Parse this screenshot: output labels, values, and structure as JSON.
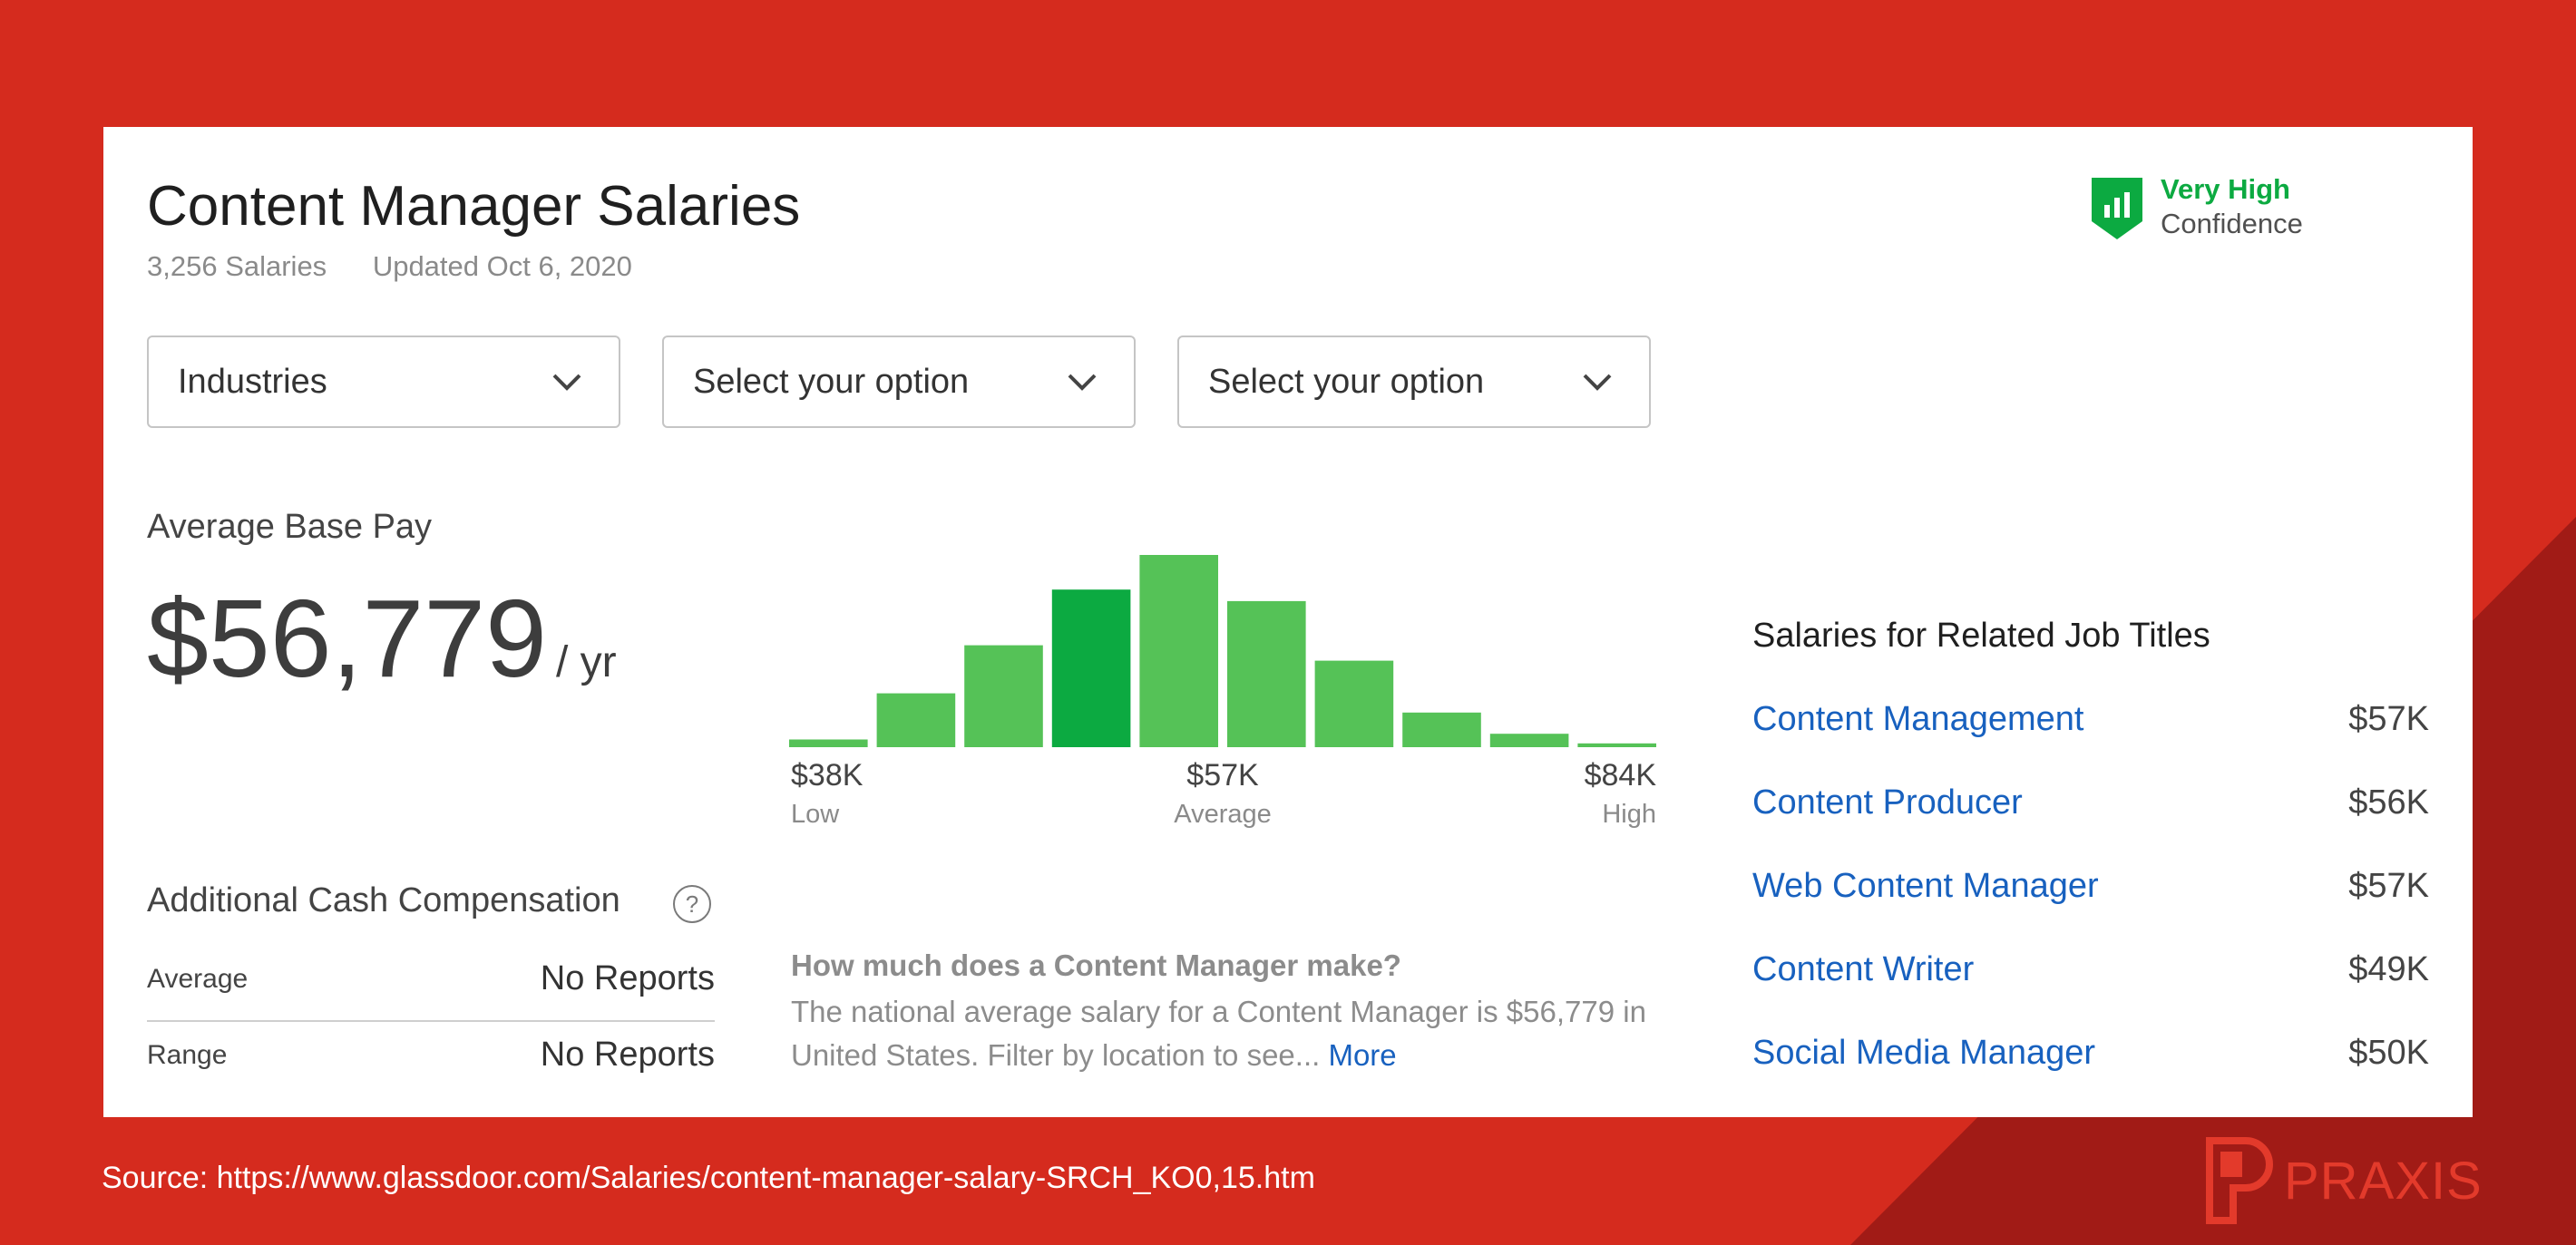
{
  "header": {
    "title": "Content Manager Salaries",
    "salary_count": "3,256 Salaries",
    "updated": "Updated Oct 6, 2020"
  },
  "confidence": {
    "level": "Very High",
    "label": "Confidence",
    "icon": "bar-chart-shield-icon",
    "color": "#0CAA41"
  },
  "filters": [
    {
      "value": "Industries"
    },
    {
      "value": "Select your option"
    },
    {
      "value": "Select your option"
    }
  ],
  "average_pay": {
    "label": "Average Base Pay",
    "value": "$56,779",
    "unit": "/ yr"
  },
  "chart_data": {
    "type": "bar",
    "values": [
      4,
      28,
      53,
      82,
      100,
      76,
      45,
      18,
      7,
      2
    ],
    "highlight_index": 3,
    "ylim": [
      0,
      100
    ],
    "tick_labels": [
      {
        "value": "$38K",
        "sub": "Low"
      },
      {
        "value": "$57K",
        "sub": "Average"
      },
      {
        "value": "$84K",
        "sub": "High"
      }
    ],
    "colors": {
      "bar": "#55C257",
      "highlight": "#0CAA41"
    }
  },
  "additional_comp": {
    "title": "Additional Cash Compensation",
    "help": "?",
    "rows": [
      {
        "label": "Average",
        "value": "No Reports"
      },
      {
        "label": "Range",
        "value": "No Reports"
      }
    ]
  },
  "faq": {
    "question": "How much does a Content Manager make?",
    "answer": "The national average salary for a Content Manager is $56,779 in United States. Filter by location to see...",
    "more": "More"
  },
  "related": {
    "title": "Salaries for Related Job Titles",
    "items": [
      {
        "title": "Content Management",
        "pay": "$57K"
      },
      {
        "title": "Content Producer",
        "pay": "$56K"
      },
      {
        "title": "Web Content Manager",
        "pay": "$57K"
      },
      {
        "title": "Content Writer",
        "pay": "$49K"
      },
      {
        "title": "Social Media Manager",
        "pay": "$50K"
      }
    ]
  },
  "footer": {
    "source": "Source: https://www.glassdoor.com/Salaries/content-manager-salary-SRCH_KO0,15.htm",
    "brand": "PRAXIS"
  },
  "colors": {
    "background": "#D52B1E",
    "background_dark": "#A11B16",
    "link": "#1861BF"
  }
}
